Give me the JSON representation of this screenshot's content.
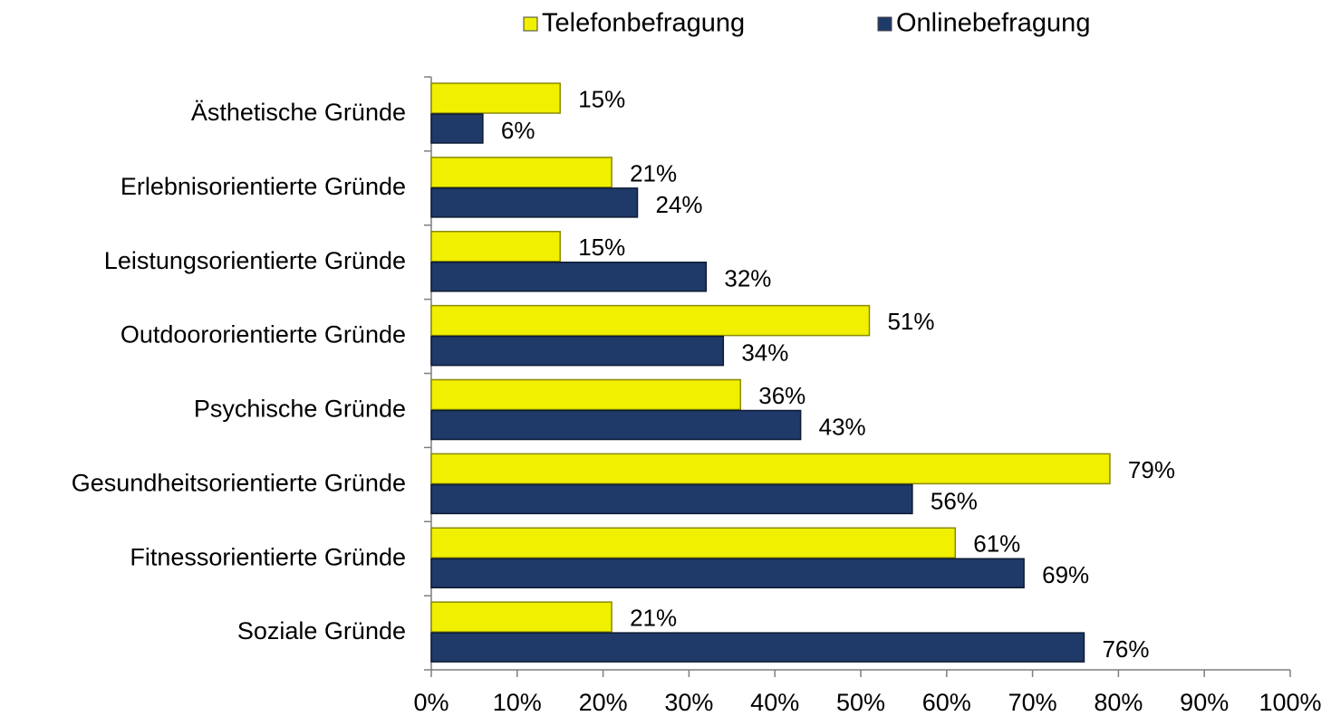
{
  "chart_data": {
    "type": "bar",
    "orientation": "horizontal",
    "categories": [
      "Ästhetische Gründe",
      "Erlebnisorientierte Gründe",
      "Leistungsorientierte Gründe",
      "Outdoororientierte Gründe",
      "Psychische Gründe",
      "Gesundheitsorientierte Gründe",
      "Fitnessorientierte Gründe",
      "Soziale Gründe"
    ],
    "series": [
      {
        "name": "Telefonbefragung",
        "color": "#f0f000",
        "values": [
          15,
          21,
          15,
          51,
          36,
          79,
          61,
          21
        ],
        "value_labels": [
          "15%",
          "21%",
          "15%",
          "51%",
          "36%",
          "79%",
          "61%",
          "21%"
        ]
      },
      {
        "name": "Onlinebefragung",
        "color": "#1f3a68",
        "values": [
          6,
          24,
          32,
          34,
          43,
          56,
          69,
          76
        ],
        "value_labels": [
          "6%",
          "24%",
          "32%",
          "34%",
          "43%",
          "56%",
          "69%",
          "76%"
        ]
      }
    ],
    "xlim": [
      0,
      100
    ],
    "xticks": [
      {
        "value": 0,
        "label": "0%"
      },
      {
        "value": 10,
        "label": "10%"
      },
      {
        "value": 20,
        "label": "20%"
      },
      {
        "value": 30,
        "label": "30%"
      },
      {
        "value": 40,
        "label": "40%"
      },
      {
        "value": 50,
        "label": "50%"
      },
      {
        "value": 60,
        "label": "60%"
      },
      {
        "value": 70,
        "label": "70%"
      },
      {
        "value": 80,
        "label": "80%"
      },
      {
        "value": 90,
        "label": "90%"
      },
      {
        "value": 100,
        "label": "100%"
      }
    ],
    "grid": false,
    "legend": "top"
  }
}
